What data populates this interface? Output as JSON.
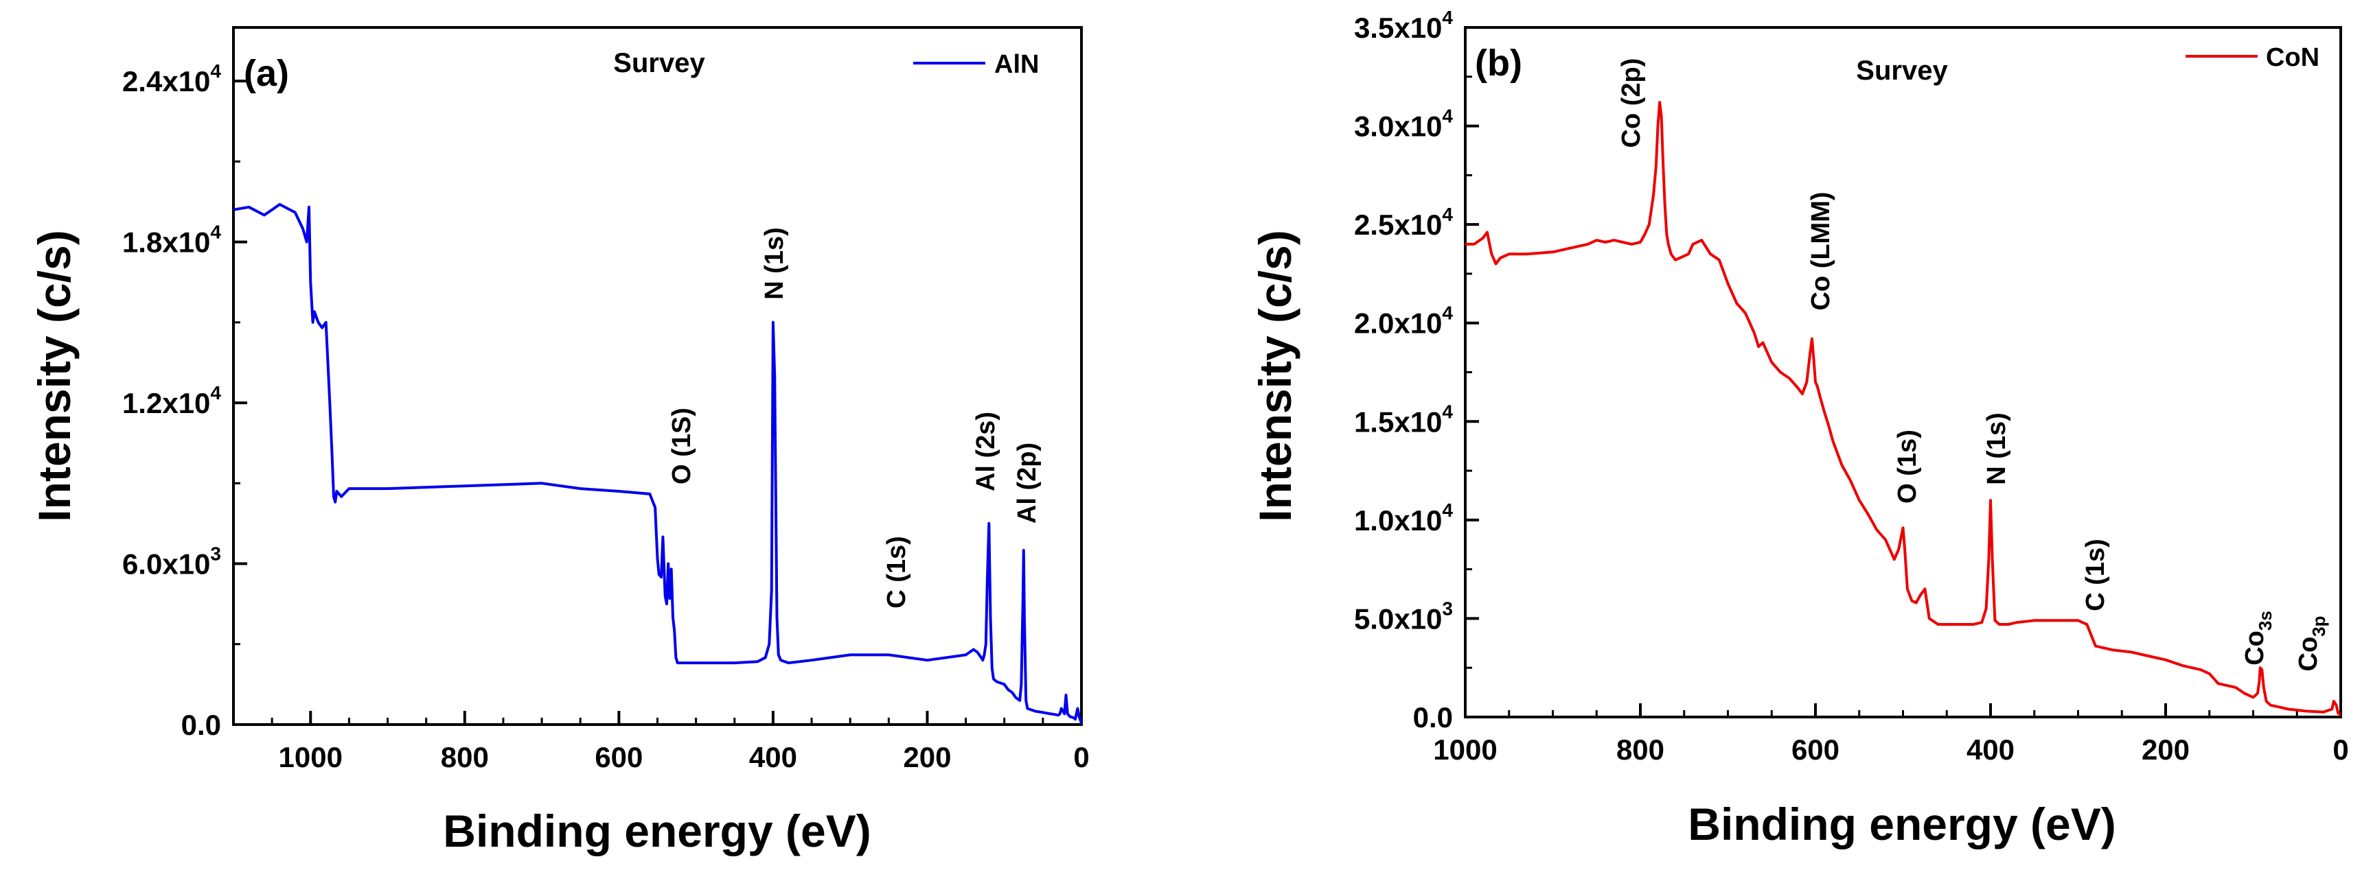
{
  "chart_data": [
    {
      "type": "line",
      "panel_label": "(a)",
      "title": "Survey",
      "xlabel": "Binding energy (eV)",
      "ylabel": "Intensity (c/s)",
      "xlim": [
        1100,
        0
      ],
      "ylim": [
        0,
        26000
      ],
      "x_ticks": [
        1000,
        800,
        600,
        400,
        200,
        0
      ],
      "x_tick_labels": [
        "1000",
        "800",
        "600",
        "400",
        "200",
        "0"
      ],
      "y_ticks": [
        0,
        6000,
        12000,
        18000,
        24000
      ],
      "y_tick_labels": [
        {
          "mantissa": "0.0",
          "exp": ""
        },
        {
          "mantissa": "6.0x10",
          "exp": "3"
        },
        {
          "mantissa": "1.2x10",
          "exp": "4"
        },
        {
          "mantissa": "1.8x10",
          "exp": "4"
        },
        {
          "mantissa": "2.4x10",
          "exp": "4"
        }
      ],
      "color": "#0000ee",
      "legend_position": "top-right",
      "series": [
        {
          "name": "AlN",
          "x": [
            1100,
            1080,
            1060,
            1040,
            1020,
            1010,
            1005,
            1002,
            1000,
            997,
            995,
            990,
            985,
            980,
            975,
            972,
            970,
            968,
            966,
            960,
            950,
            900,
            800,
            700,
            650,
            600,
            560,
            553,
            550,
            548,
            545,
            543,
            540,
            538,
            536,
            534,
            532,
            530,
            528,
            526,
            524,
            522,
            520,
            500,
            450,
            420,
            410,
            405,
            402,
            400,
            398,
            397,
            395,
            393,
            390,
            380,
            350,
            300,
            250,
            200,
            150,
            140,
            135,
            130,
            128,
            126,
            124,
            122,
            120,
            118,
            116,
            114,
            110,
            100,
            95,
            90,
            85,
            80,
            78,
            76,
            75,
            74,
            72,
            70,
            60,
            50,
            40,
            35,
            30,
            28,
            26,
            24,
            22,
            20,
            18,
            15,
            10,
            8,
            5,
            3,
            0
          ],
          "y": [
            19200,
            19300,
            19000,
            19400,
            19100,
            18500,
            18000,
            19300,
            16500,
            15000,
            15400,
            15000,
            14800,
            15000,
            12000,
            10000,
            8500,
            8300,
            8700,
            8500,
            8800,
            8800,
            8900,
            9000,
            8800,
            8700,
            8600,
            8100,
            6200,
            5600,
            5500,
            7000,
            4800,
            4500,
            6000,
            4700,
            5800,
            4000,
            3500,
            2500,
            2300,
            2300,
            2300,
            2300,
            2300,
            2350,
            2500,
            3000,
            5000,
            15000,
            13000,
            10000,
            4000,
            2600,
            2400,
            2300,
            2400,
            2600,
            2600,
            2400,
            2600,
            2800,
            2700,
            2500,
            2400,
            2600,
            3000,
            5500,
            7500,
            4000,
            2100,
            1700,
            1600,
            1500,
            1300,
            1200,
            1000,
            900,
            1500,
            4500,
            6500,
            4000,
            900,
            600,
            500,
            450,
            400,
            380,
            350,
            400,
            600,
            500,
            400,
            1100,
            400,
            300,
            250,
            200,
            600,
            300,
            50
          ]
        }
      ],
      "annotations": [
        "O (1S)",
        "N (1s)",
        "C (1s)",
        "Al (2s)",
        "Al (2p)"
      ]
    },
    {
      "type": "line",
      "panel_label": "(b)",
      "title": "Survey",
      "xlabel": "Binding energy (eV)",
      "ylabel": "Intensity (c/s)",
      "xlim": [
        1000,
        0
      ],
      "ylim": [
        0,
        35000
      ],
      "x_ticks": [
        1000,
        800,
        600,
        400,
        200,
        0
      ],
      "x_tick_labels": [
        "1000",
        "800",
        "600",
        "400",
        "200",
        "0"
      ],
      "y_ticks": [
        0,
        5000,
        10000,
        15000,
        20000,
        25000,
        30000,
        35000
      ],
      "y_tick_labels": [
        {
          "mantissa": "0.0",
          "exp": ""
        },
        {
          "mantissa": "5.0x10",
          "exp": "3"
        },
        {
          "mantissa": "1.0x10",
          "exp": "4"
        },
        {
          "mantissa": "1.5x10",
          "exp": "4"
        },
        {
          "mantissa": "2.0x10",
          "exp": "4"
        },
        {
          "mantissa": "2.5x10",
          "exp": "4"
        },
        {
          "mantissa": "3.0x10",
          "exp": "4"
        },
        {
          "mantissa": "3.5x10",
          "exp": "4"
        }
      ],
      "color": "#ee0000",
      "legend_position": "top-right",
      "series": [
        {
          "name": "CoN",
          "x": [
            1000,
            990,
            980,
            975,
            970,
            965,
            960,
            950,
            930,
            900,
            880,
            860,
            850,
            840,
            830,
            820,
            810,
            800,
            795,
            790,
            785,
            782,
            780,
            778,
            776,
            774,
            772,
            770,
            768,
            765,
            760,
            755,
            750,
            745,
            740,
            730,
            720,
            710,
            700,
            690,
            680,
            670,
            665,
            660,
            650,
            640,
            630,
            620,
            615,
            610,
            606,
            604,
            602,
            600,
            598,
            595,
            590,
            585,
            580,
            570,
            560,
            550,
            540,
            530,
            520,
            510,
            505,
            500,
            498,
            495,
            490,
            485,
            480,
            475,
            470,
            460,
            450,
            420,
            410,
            405,
            402,
            400,
            398,
            395,
            390,
            380,
            370,
            350,
            330,
            300,
            290,
            280,
            260,
            240,
            220,
            200,
            180,
            160,
            150,
            140,
            130,
            120,
            110,
            100,
            95,
            93,
            92,
            90,
            88,
            85,
            80,
            70,
            60,
            40,
            20,
            10,
            8,
            5,
            3,
            0
          ],
          "y": [
            24000,
            24000,
            24300,
            24600,
            23500,
            23000,
            23300,
            23500,
            23500,
            23600,
            23800,
            24000,
            24200,
            24100,
            24200,
            24100,
            24000,
            24100,
            24500,
            25000,
            26500,
            28000,
            30000,
            31200,
            30500,
            28000,
            26000,
            24500,
            24000,
            23500,
            23200,
            23300,
            23400,
            23500,
            24000,
            24200,
            23500,
            23200,
            22000,
            21000,
            20500,
            19500,
            18800,
            19000,
            18000,
            17500,
            17200,
            16700,
            16400,
            17000,
            18500,
            19200,
            18200,
            17000,
            16800,
            16300,
            15500,
            14800,
            14000,
            12800,
            12000,
            11000,
            10300,
            9500,
            9000,
            8000,
            8500,
            9600,
            8500,
            6500,
            5900,
            5800,
            6200,
            6500,
            5000,
            4700,
            4700,
            4700,
            4800,
            5500,
            8000,
            11000,
            8000,
            4900,
            4700,
            4700,
            4800,
            4900,
            4900,
            4900,
            4700,
            3600,
            3400,
            3300,
            3100,
            2900,
            2600,
            2400,
            2200,
            1700,
            1600,
            1500,
            1200,
            1000,
            1200,
            1800,
            2500,
            2400,
            1500,
            800,
            600,
            500,
            400,
            300,
            250,
            400,
            800,
            600,
            200,
            100
          ]
        }
      ],
      "annotations": [
        "Co (2p)",
        "Co (LMM)",
        "O (1s)",
        "N (1s)",
        "C (1s)",
        "Co",
        "3s",
        "Co",
        "3p"
      ]
    }
  ]
}
